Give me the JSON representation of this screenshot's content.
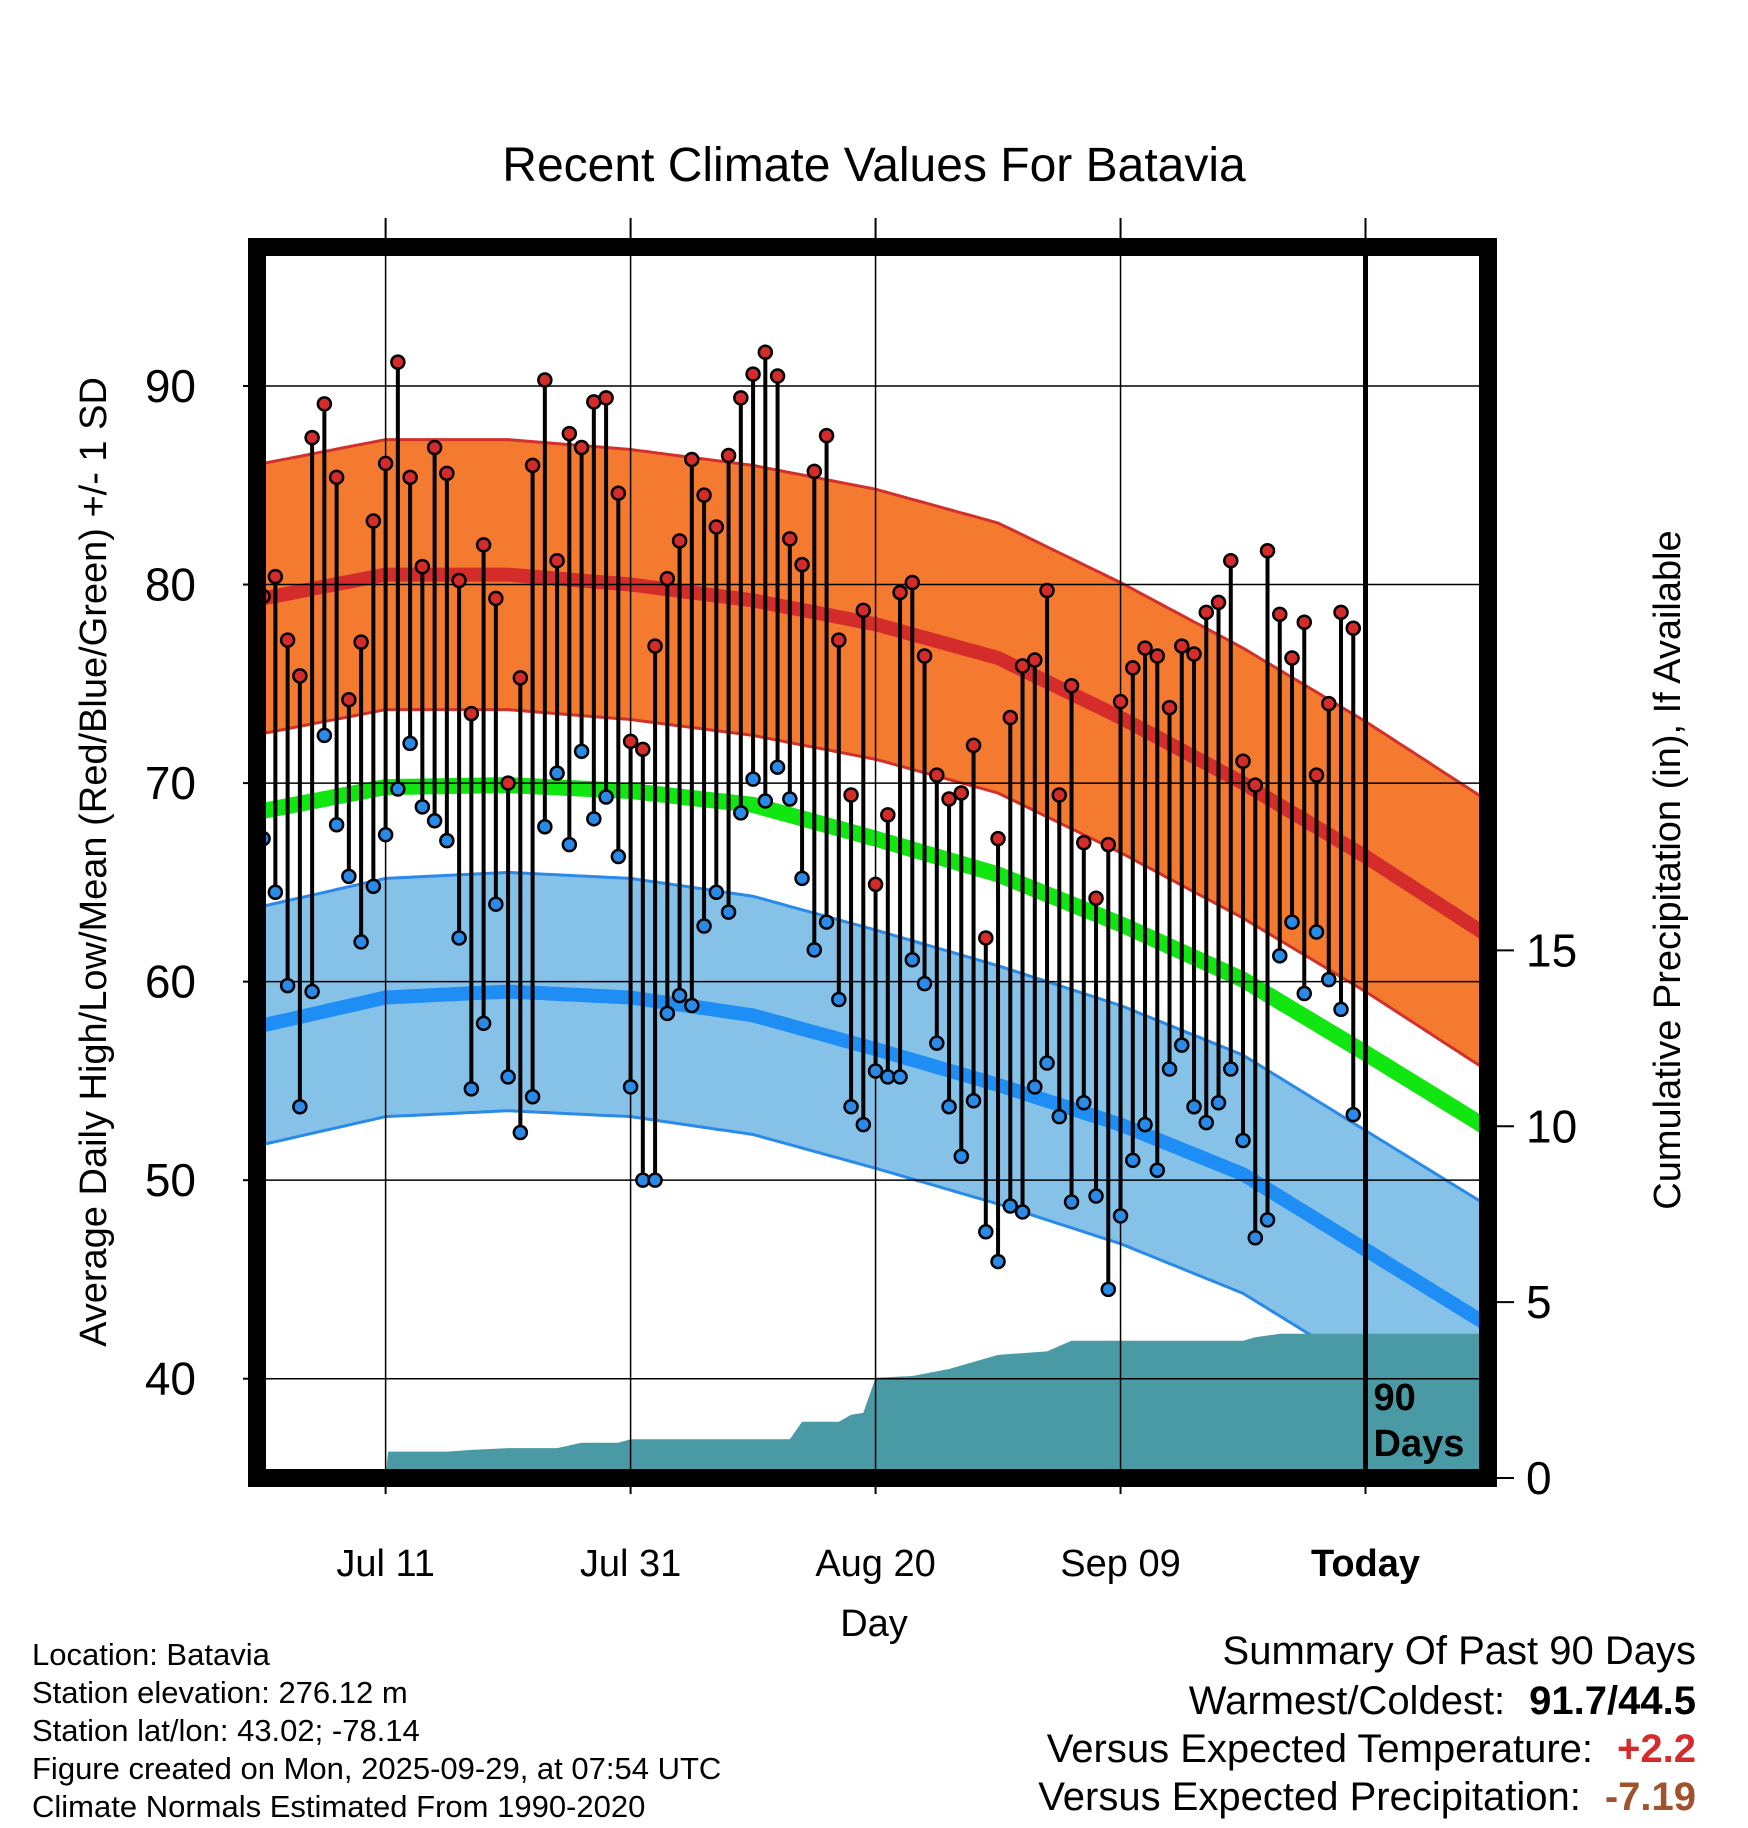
{
  "colors": {
    "high_band": "#f47a30",
    "high_band_edge": "#d2312b",
    "high_mean": "#d42b2b",
    "low_band": "#86c1e8",
    "low_band_edge": "#2a8ae8",
    "low_mean": "#1e8ef5",
    "mean_line": "#11e611",
    "precip": "#4a9aa5",
    "high_point": "#d42b2b",
    "low_point": "#2a8ae8",
    "positive": "#d42b2b",
    "precip_summary": "#a0522d"
  },
  "chart_data": {
    "type": "line",
    "title": "Recent Climate Values For Batavia",
    "xlabel": "Day",
    "ylabel": "Average Daily High/Low/Mean (Red/Blue/Green) +/- 1 SD",
    "y2label": "Cumulative Precipitation (in), If Available",
    "x_tick_labels": [
      "Jul 11",
      "Jul 31",
      "Aug 20",
      "Sep 09",
      "Today"
    ],
    "x_tick_days": [
      10,
      30,
      50,
      70,
      90
    ],
    "xlim": [
      -0.5,
      100
    ],
    "ylim": [
      35,
      97
    ],
    "yticks": [
      40,
      50,
      60,
      70,
      80,
      90
    ],
    "y2lim": [
      0,
      35
    ],
    "y2ticks": [
      0,
      5,
      10,
      15
    ],
    "today_label": "90 Days",
    "normal_high_mean": [
      [
        0,
        79.3
      ],
      [
        10,
        80.5
      ],
      [
        20,
        80.5
      ],
      [
        30,
        80.0
      ],
      [
        40,
        79.2
      ],
      [
        50,
        78.0
      ],
      [
        60,
        76.3
      ],
      [
        70,
        73.3
      ],
      [
        80,
        70.0
      ],
      [
        90,
        66.3
      ],
      [
        100,
        62.3
      ]
    ],
    "normal_high_sd": 6.8,
    "normal_low_mean": [
      [
        0,
        57.8
      ],
      [
        10,
        59.2
      ],
      [
        20,
        59.5
      ],
      [
        30,
        59.2
      ],
      [
        40,
        58.3
      ],
      [
        50,
        56.6
      ],
      [
        60,
        54.8
      ],
      [
        70,
        52.8
      ],
      [
        80,
        50.3
      ],
      [
        90,
        46.5
      ],
      [
        100,
        42.7
      ]
    ],
    "normal_low_sd": 6.0,
    "normal_mean": [
      [
        0,
        68.6
      ],
      [
        10,
        69.8
      ],
      [
        20,
        69.9
      ],
      [
        30,
        69.6
      ],
      [
        40,
        68.9
      ],
      [
        50,
        67.2
      ],
      [
        60,
        65.4
      ],
      [
        70,
        62.9
      ],
      [
        80,
        60.1
      ],
      [
        90,
        56.4
      ],
      [
        100,
        52.6
      ]
    ],
    "daily_high": [
      79.4,
      80.4,
      77.2,
      75.4,
      87.4,
      89.1,
      85.4,
      74.2,
      77.1,
      83.2,
      86.1,
      91.2,
      85.4,
      80.9,
      86.9,
      85.6,
      80.2,
      73.5,
      82.0,
      79.3,
      70.0,
      75.3,
      86.0,
      90.3,
      81.2,
      87.6,
      86.9,
      89.2,
      89.4,
      84.6,
      72.1,
      71.7,
      76.9,
      80.3,
      82.2,
      86.3,
      84.5,
      82.9,
      86.5,
      89.4,
      90.6,
      91.7,
      90.5,
      82.3,
      81.0,
      85.7,
      87.5,
      77.2,
      69.4,
      78.7,
      64.9,
      68.4,
      79.6,
      80.1,
      76.4,
      70.4,
      69.2,
      69.5,
      71.9,
      62.2,
      67.2,
      73.3,
      75.9,
      76.2,
      79.7,
      69.4,
      74.9,
      67.0,
      64.2,
      66.9,
      74.1,
      75.8,
      76.8,
      76.4,
      73.8,
      76.9,
      76.5,
      78.6,
      79.1,
      81.2,
      71.1,
      69.9,
      81.7,
      78.5,
      76.3,
      78.1,
      70.4,
      74.0,
      78.6,
      77.8
    ],
    "daily_low": [
      67.2,
      64.5,
      59.8,
      53.7,
      59.5,
      72.4,
      67.9,
      65.3,
      62.0,
      64.8,
      67.4,
      69.7,
      72.0,
      68.8,
      68.1,
      67.1,
      62.2,
      54.6,
      57.9,
      63.9,
      55.2,
      52.4,
      54.2,
      67.8,
      70.5,
      66.9,
      71.6,
      68.2,
      69.3,
      66.3,
      54.7,
      50.0,
      50.0,
      58.4,
      59.3,
      58.8,
      62.8,
      64.5,
      63.5,
      68.5,
      70.2,
      69.1,
      70.8,
      69.2,
      65.2,
      61.6,
      63.0,
      59.1,
      53.7,
      52.8,
      55.5,
      55.2,
      55.2,
      61.1,
      59.9,
      56.9,
      53.7,
      51.2,
      54.0,
      47.4,
      45.9,
      48.7,
      48.4,
      54.7,
      55.9,
      53.2,
      48.9,
      53.9,
      49.2,
      44.5,
      48.2,
      51.0,
      52.8,
      50.5,
      55.6,
      56.8,
      53.7,
      52.9,
      53.9,
      55.6,
      52.0,
      47.1,
      48.0,
      61.3,
      63.0,
      59.4,
      62.5,
      60.1,
      58.6,
      53.3
    ],
    "cumulative_precip": [
      [
        0,
        0
      ],
      [
        10,
        0
      ],
      [
        10.2,
        0.75
      ],
      [
        15,
        0.75
      ],
      [
        17,
        0.8
      ],
      [
        20,
        0.85
      ],
      [
        24,
        0.85
      ],
      [
        26,
        1.0
      ],
      [
        29,
        1.0
      ],
      [
        30,
        1.1
      ],
      [
        43,
        1.1
      ],
      [
        44,
        1.6
      ],
      [
        47,
        1.6
      ],
      [
        48,
        1.8
      ],
      [
        49,
        1.85
      ],
      [
        50,
        2.85
      ],
      [
        53,
        2.9
      ],
      [
        56,
        3.1
      ],
      [
        60,
        3.5
      ],
      [
        64,
        3.6
      ],
      [
        66,
        3.9
      ],
      [
        80,
        3.9
      ],
      [
        81,
        4.0
      ],
      [
        83,
        4.1
      ],
      [
        90,
        4.1
      ],
      [
        100,
        4.1
      ]
    ]
  },
  "location": {
    "name_line": "Location: Batavia",
    "elevation_line": "Station elevation: 276.12 m",
    "latlon_line": "Station lat/lon: 43.02; -78.14",
    "created_line": "Figure created on Mon, 2025-09-29, at 07:54 UTC",
    "normals_line": "Climate Normals Estimated From 1990-2020"
  },
  "summary": {
    "title": "Summary Of Past 90 Days",
    "warmest_coldest_label": "Warmest/Coldest:",
    "warmest_coldest_value": "91.7/44.5",
    "temp_label": "Versus Expected Temperature:",
    "temp_value": "+2.2",
    "precip_label": "Versus Expected Precipitation:",
    "precip_value": "-7.19"
  }
}
